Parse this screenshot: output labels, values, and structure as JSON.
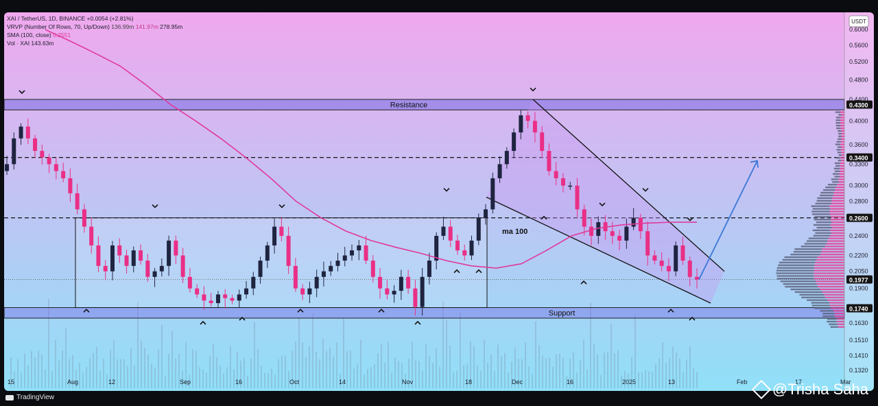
{
  "header": {
    "line1": "XAI / TetherUS, 1D, BINANCE  +0.0054 (+2.81%)",
    "line2_label": "VRVP (Number Of Rows, 70, Up/Down)",
    "line2_v1": "136.99m",
    "line2_v2": "141.97m",
    "line2_v3": "278.95m",
    "line3_label": "SMA (100, close)",
    "line3_value": "0.2551",
    "line4": "Vol · XAI  143.63m"
  },
  "currency": "USDT",
  "footer": {
    "tradingview": "TradingView",
    "watermark": "@Trisha Saha"
  },
  "colors": {
    "bg_top": "#f0a8ee",
    "bg_bottom": "#90e0f8",
    "up_candle": "#1f2440",
    "down_candle": "#ea2f86",
    "sma_line": "#e0399a",
    "arrow": "#3a78d8",
    "tag_bg": "#151515"
  },
  "chart_data": {
    "type": "candlestick",
    "symbol": "XAI / TetherUS",
    "timeframe": "1D",
    "exchange": "BINANCE",
    "y_scale": "log",
    "ylim": [
      0.125,
      0.64
    ],
    "x_ticks": [
      "15",
      "Aug",
      "12",
      "Sep",
      "16",
      "Oct",
      "14",
      "Nov",
      "18",
      "Dec",
      "16",
      "2025",
      "13",
      "Feb",
      "17",
      "Mar"
    ],
    "y_ticks": [
      "0.6000",
      "0.5600",
      "0.5200",
      "0.4800",
      "0.4400",
      "0.4000",
      "0.3600",
      "0.3300",
      "0.3000",
      "0.2800",
      "0.2400",
      "0.2200",
      "0.2050",
      "0.1900",
      "0.1630",
      "0.1510",
      "0.1410",
      "0.1320"
    ],
    "price_tags": [
      "0.4300",
      "0.3400",
      "0.2600",
      "0.1977",
      "0.1740"
    ],
    "annotations": {
      "resistance": "Resistance",
      "support": "Support",
      "ma": "ma 100"
    },
    "close_path": [
      0.33,
      0.37,
      0.39,
      0.37,
      0.35,
      0.34,
      0.33,
      0.32,
      0.31,
      0.29,
      0.27,
      0.25,
      0.23,
      0.21,
      0.205,
      0.23,
      0.22,
      0.21,
      0.225,
      0.215,
      0.2,
      0.205,
      0.21,
      0.235,
      0.22,
      0.2,
      0.19,
      0.185,
      0.18,
      0.178,
      0.185,
      0.182,
      0.18,
      0.185,
      0.19,
      0.2,
      0.215,
      0.23,
      0.25,
      0.24,
      0.21,
      0.19,
      0.185,
      0.19,
      0.2,
      0.205,
      0.21,
      0.215,
      0.22,
      0.225,
      0.23,
      0.215,
      0.2,
      0.19,
      0.185,
      0.188,
      0.2,
      0.19,
      0.175,
      0.2,
      0.215,
      0.24,
      0.25,
      0.235,
      0.225,
      0.22,
      0.235,
      0.26,
      0.27,
      0.31,
      0.33,
      0.35,
      0.38,
      0.41,
      0.4,
      0.38,
      0.35,
      0.32,
      0.31,
      0.3,
      0.3,
      0.27,
      0.25,
      0.24,
      0.255,
      0.245,
      0.24,
      0.235,
      0.25,
      0.26,
      0.245,
      0.22,
      0.215,
      0.21,
      0.205,
      0.23,
      0.215,
      0.2,
      0.1977
    ],
    "sma100_path": [
      0.6,
      0.57,
      0.54,
      0.51,
      0.47,
      0.43,
      0.4,
      0.37,
      0.34,
      0.31,
      0.28,
      0.26,
      0.245,
      0.235,
      0.228,
      0.222,
      0.215,
      0.21,
      0.208,
      0.212,
      0.225,
      0.24,
      0.248,
      0.252,
      0.254,
      0.255,
      0.2551
    ]
  }
}
